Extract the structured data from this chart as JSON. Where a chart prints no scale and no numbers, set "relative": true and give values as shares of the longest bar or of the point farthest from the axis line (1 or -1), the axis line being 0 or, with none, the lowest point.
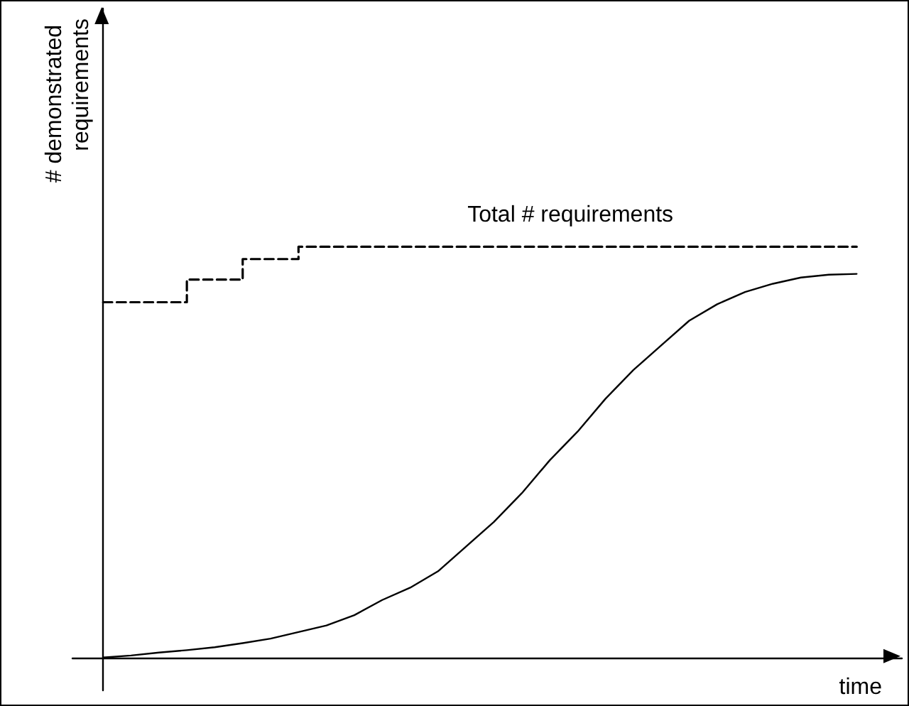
{
  "chart_data": {
    "type": "line",
    "relative": true,
    "ylabel": "# demonstrated requirements",
    "xlabel": "time",
    "annotations": [
      "Total # requirements"
    ],
    "grid": false,
    "marker": "none",
    "categories": [
      null,
      null,
      null,
      null,
      null,
      null,
      null,
      null,
      null,
      null,
      null,
      null,
      null,
      null,
      null,
      null,
      null,
      null,
      null,
      null,
      null,
      null,
      null,
      null,
      null,
      null,
      null,
      null
    ],
    "series": [
      {
        "type": "step",
        "color": "#000000",
        "line_style": "dashed",
        "values": [
          0.865,
          0.865,
          0.865,
          0.92,
          0.92,
          0.97,
          0.97,
          1,
          1,
          1,
          1,
          1,
          1,
          1,
          1,
          1,
          1,
          1,
          1,
          1,
          1,
          1,
          1,
          1,
          1,
          1,
          1,
          1
        ]
      },
      {
        "color": "#000000",
        "line_style": "solid",
        "values": [
          0,
          0.005,
          0.012,
          0.018,
          0.025,
          0.035,
          0.046,
          0.062,
          0.078,
          0.103,
          0.14,
          0.17,
          0.21,
          0.27,
          0.33,
          0.4,
          0.48,
          0.55,
          0.63,
          0.7,
          0.76,
          0.82,
          0.86,
          0.89,
          0.91,
          0.925,
          0.932,
          0.934
        ]
      }
    ]
  }
}
